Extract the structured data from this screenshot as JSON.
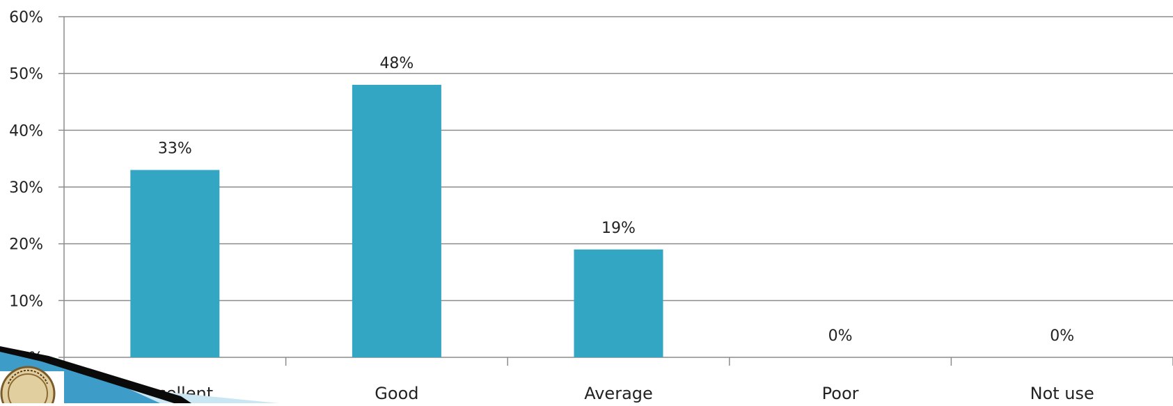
{
  "chart_data": {
    "type": "bar",
    "title": "",
    "xlabel": "",
    "ylabel": "",
    "categories": [
      "Excellent",
      "Good",
      "Average",
      "Poor",
      "Not use"
    ],
    "values": [
      33,
      48,
      19,
      0,
      0
    ],
    "data_labels": [
      "33%",
      "48%",
      "19%",
      "0%",
      "0%"
    ],
    "ylim": [
      0,
      60
    ],
    "yticks": [
      0,
      10,
      20,
      30,
      40,
      50,
      60
    ],
    "ytick_labels": [
      "0%",
      "10%",
      "20%",
      "30%",
      "40%",
      "50%",
      "60%"
    ],
    "grid": true,
    "legend": "none",
    "colors": {
      "bar": "#33A6C4",
      "grid": "#8C8C8C",
      "axis": "#8C8C8C",
      "text": "#222222"
    }
  },
  "decoration": {
    "logo_icon": "institute-seal-icon",
    "slide_corner": "blue-swoosh-corner"
  }
}
